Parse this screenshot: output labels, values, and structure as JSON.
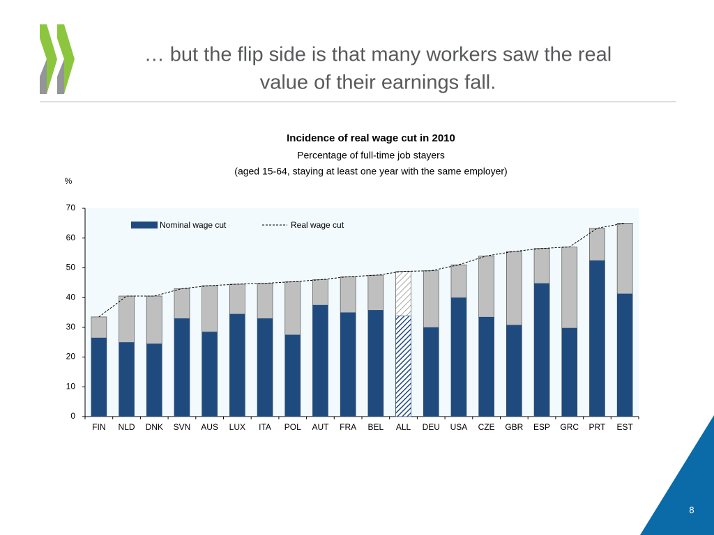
{
  "header": {
    "title": [
      "… but the flip side is that many workers saw the real",
      "value of their earnings fall."
    ],
    "page_number": "8"
  },
  "chart_data": {
    "type": "bar",
    "title": "Incidence of real wage cut in 2010",
    "subtitle": [
      "Percentage of full-time job stayers",
      "(aged 15-64, staying at least one year with the same employer)"
    ],
    "y_label": "%",
    "categories": [
      "FIN",
      "NLD",
      "DNK",
      "SVN",
      "AUS",
      "LUX",
      "ITA",
      "POL",
      "AUT",
      "FRA",
      "BEL",
      "ALL",
      "DEU",
      "USA",
      "CZE",
      "GBR",
      "ESP",
      "GRC",
      "PRT",
      "EST"
    ],
    "highlight": "ALL",
    "series": [
      {
        "name": "Nominal wage cut",
        "color": "#1f4a7e",
        "values": [
          26.5,
          25,
          24.5,
          33,
          28.5,
          34.5,
          33,
          27.5,
          37.5,
          35,
          35.8,
          33.8,
          30,
          40,
          33.5,
          30.8,
          44.8,
          29.8,
          52.5,
          41.3
        ]
      },
      {
        "name": "Real wage cut",
        "color": "#bfbfbf",
        "values": [
          33.5,
          40.5,
          40.5,
          43,
          44,
          44.5,
          44.8,
          45.3,
          46,
          47,
          47.5,
          48.8,
          49,
          51,
          54,
          55.5,
          56.5,
          57,
          63.3,
          65
        ]
      }
    ],
    "ylim": [
      0,
      70
    ],
    "yticks": [
      0,
      10,
      20,
      30,
      40,
      50,
      60,
      70
    ]
  }
}
